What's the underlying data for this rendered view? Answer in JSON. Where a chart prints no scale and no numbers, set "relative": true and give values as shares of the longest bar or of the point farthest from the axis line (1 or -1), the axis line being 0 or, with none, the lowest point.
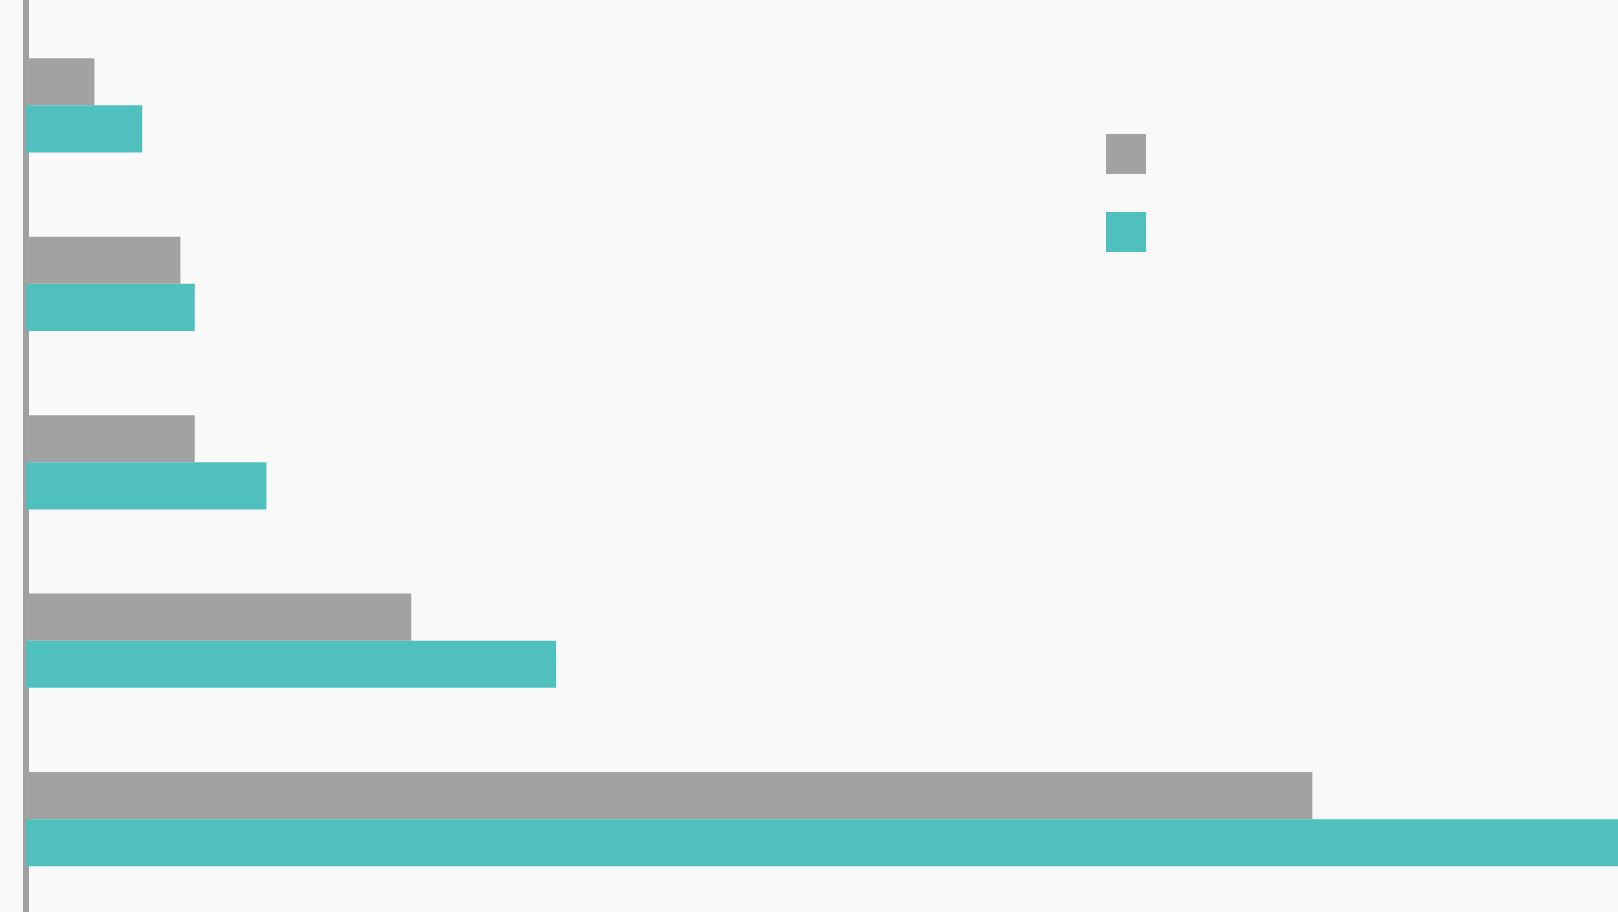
{
  "chart_data": {
    "type": "bar",
    "orientation": "horizontal",
    "relative": true,
    "categories": [
      null,
      null,
      null,
      null,
      null
    ],
    "series": [
      {
        "color": "#a2a2a2",
        "values": [
          0.043,
          0.097,
          0.106,
          0.242,
          0.808
        ]
      },
      {
        "color": "#4fc0bd",
        "values": [
          0.073,
          0.106,
          0.151,
          0.333,
          1
        ]
      }
    ]
  }
}
